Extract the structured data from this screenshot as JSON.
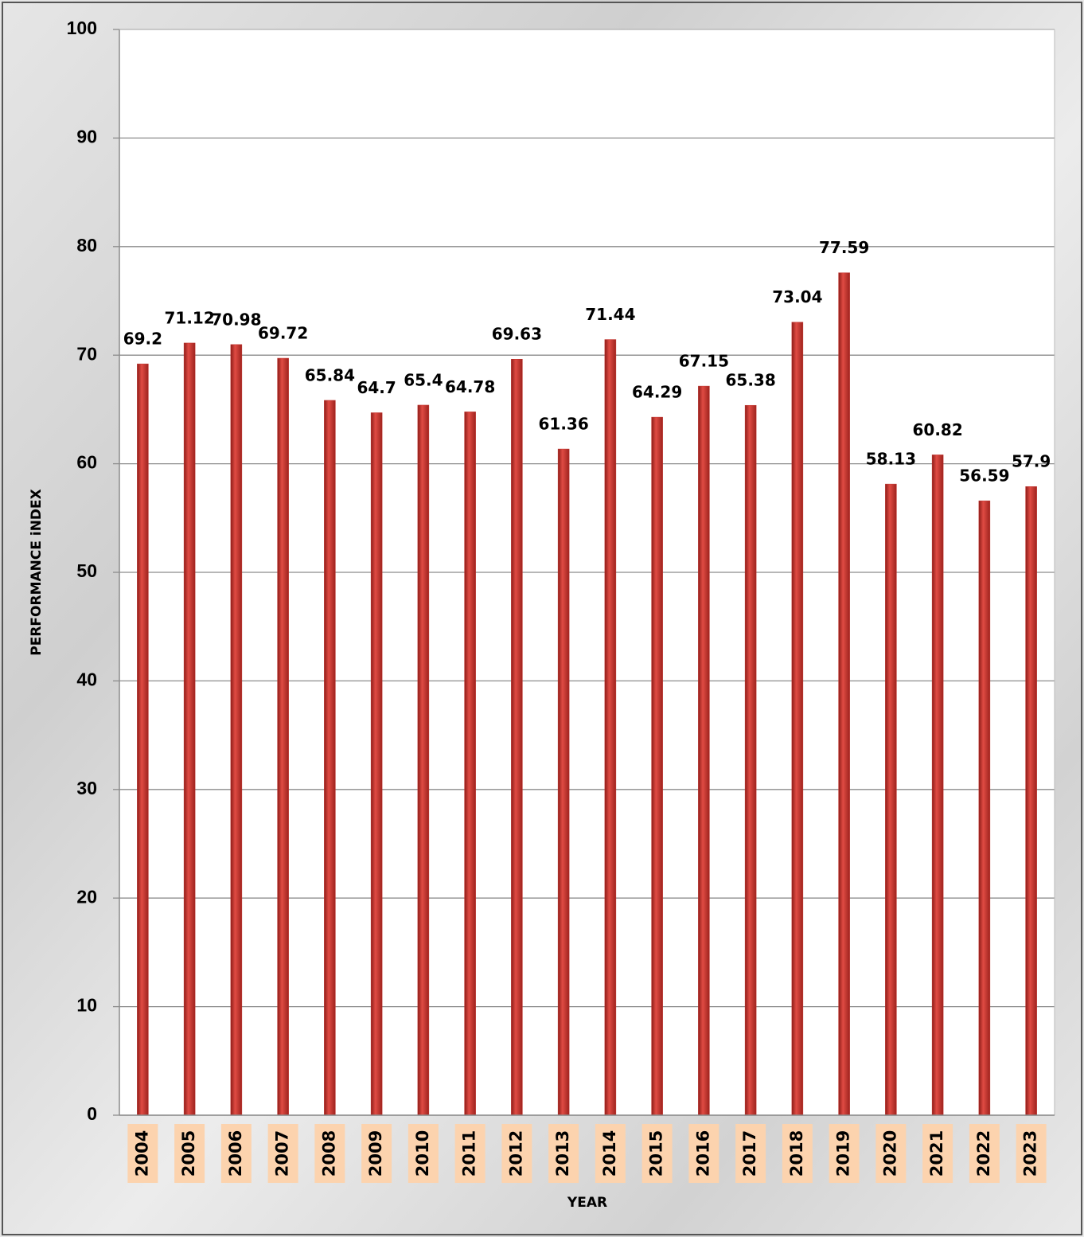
{
  "chart_data": {
    "type": "bar",
    "x_label": "YEAR",
    "y_label": "PERFORMANCE iNDEX",
    "categories": [
      "2004",
      "2005",
      "2006",
      "2007",
      "2008",
      "2009",
      "2010",
      "2011",
      "2012",
      "2013",
      "2014",
      "2015",
      "2016",
      "2017",
      "2018",
      "2019",
      "2020",
      "2021",
      "2022",
      "2023"
    ],
    "values": [
      69.2,
      71.12,
      70.98,
      69.72,
      65.84,
      64.7,
      65.4,
      64.78,
      69.63,
      61.36,
      71.44,
      64.29,
      67.15,
      65.38,
      73.04,
      77.59,
      58.13,
      60.82,
      56.59,
      57.9
    ],
    "color": "#c0302a",
    "ylim": [
      0,
      100
    ],
    "yticks": [
      0,
      10,
      20,
      30,
      40,
      50,
      60,
      70,
      80,
      90,
      100
    ],
    "grid": true
  }
}
